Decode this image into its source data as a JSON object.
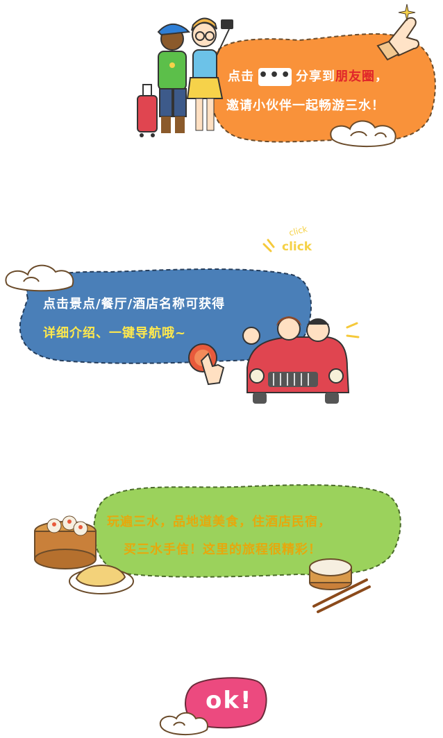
{
  "section_share": {
    "line1_a": "点击",
    "line1_dots": "•••",
    "line1_b": "分享到",
    "line1_red": "朋友圈",
    "line1_c": "，",
    "line2": "邀请小伙伴一起畅游三水！"
  },
  "section_tip": {
    "click_small": "click",
    "click_big": "click",
    "line1": "点击景点/餐厅/酒店名称可获得",
    "line2": "详细介绍、一键导航哦~"
  },
  "section_food": {
    "line1": "玩遍三水，品地道美食，住酒店民宿，",
    "line2": "买三水手信！这里的旅程很精彩！"
  },
  "ok_badge": {
    "label": "ok!"
  },
  "colors": {
    "orange_bubble": "#f9923a",
    "blue_bubble": "#4a7fb8",
    "green_bubble": "#9bd25c",
    "pink_badge": "#ec4a7f",
    "highlight_red": "#e0262a",
    "highlight_yellow": "#ffe94d"
  }
}
